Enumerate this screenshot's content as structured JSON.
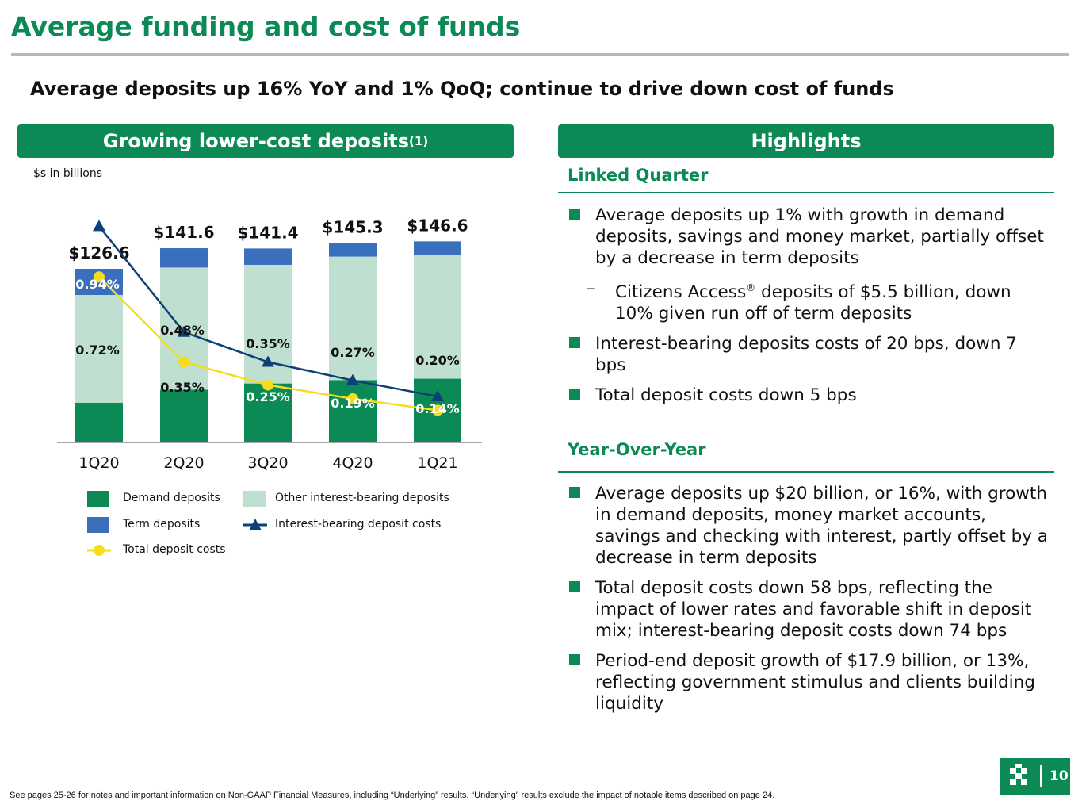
{
  "header": {
    "title": "Average funding and cost of funds",
    "subtitle": "Average deposits up 16% YoY and 1% QoQ; continue to drive down cost of funds"
  },
  "left_panel": {
    "banner": "Growing lower-cost deposits",
    "banner_sup": "(1)",
    "units": "$s in billions"
  },
  "chart_data": {
    "type": "bar",
    "stacked": true,
    "categories": [
      "1Q20",
      "2Q20",
      "3Q20",
      "4Q20",
      "1Q21"
    ],
    "totals": [
      126.6,
      141.6,
      141.4,
      145.3,
      146.6
    ],
    "total_labels": [
      "$126.6",
      "$141.6",
      "$141.4",
      "$145.3",
      "$146.6"
    ],
    "series": [
      {
        "name": "Demand deposits",
        "color": "#0b8a55",
        "values": [
          29.0,
          38.5,
          43.0,
          45.5,
          46.5
        ]
      },
      {
        "name": "Other interest-bearing deposits",
        "color": "#bfe0d0",
        "values": [
          78.5,
          89.0,
          86.5,
          90.0,
          90.5
        ]
      },
      {
        "name": "Term deposits",
        "color": "#3a6fbe",
        "values": [
          19.1,
          14.1,
          11.9,
          9.8,
          9.6
        ]
      }
    ],
    "rate_series": [
      {
        "name": "Interest-bearing deposit costs",
        "color": "#0d3f78",
        "marker": "triangle",
        "values": [
          0.94,
          0.48,
          0.35,
          0.27,
          0.2
        ],
        "labels": [
          "0.94%",
          "0.48%",
          "0.35%",
          "0.27%",
          "0.20%"
        ]
      },
      {
        "name": "Total deposit costs",
        "color": "#f5dc1e",
        "marker": "circle",
        "values": [
          0.72,
          0.35,
          0.25,
          0.19,
          0.14
        ],
        "labels": [
          "0.72%",
          "0.35%",
          "0.25%",
          "0.19%",
          "0.14%"
        ]
      }
    ],
    "ylim": [
      0,
      160
    ],
    "legend": [
      {
        "name": "Demand deposits",
        "kind": "box",
        "color": "#0b8a55"
      },
      {
        "name": "Other interest-bearing deposits",
        "kind": "box",
        "color": "#bfe0d0"
      },
      {
        "name": "Term deposits",
        "kind": "box",
        "color": "#3a6fbe"
      },
      {
        "name": "Interest-bearing deposit costs",
        "kind": "triangle-line",
        "color": "#0d3f78"
      },
      {
        "name": "Total deposit costs",
        "kind": "circle-line",
        "color": "#f5dc1e"
      }
    ],
    "legend_placement": "bottom",
    "grid": false
  },
  "right_panel": {
    "banner": "Highlights",
    "linked_quarter": {
      "heading": "Linked Quarter",
      "b1": "Average deposits up 1% with growth in demand deposits, savings and money market, partially offset by a decrease in term deposits",
      "sub1_a": "Citizens Access",
      "sub1_sup": "®",
      "sub1_b": " deposits of $5.5 billion, down 10% given run off of term deposits",
      "b2": "Interest-bearing deposits costs of 20 bps, down 7 bps",
      "b3": "Total deposit costs down 5 bps"
    },
    "year_over_year": {
      "heading": "Year-Over-Year",
      "b1": "Average deposits up $20 billion, or 16%, with growth in demand deposits, money market accounts, savings and checking with interest, partly offset by a decrease in term deposits",
      "b2": "Total deposit costs down 58 bps, reflecting the impact of lower rates and favorable shift in deposit mix; interest-bearing deposit costs down 74 bps",
      "b3": "Period-end deposit growth of $17.9 billion, or 13%, reflecting government stimulus and clients building liquidity"
    }
  },
  "footer": {
    "footnote": "See pages 25-26 for notes and important information on Non-GAAP Financial Measures, including “Underlying” results. “Underlying” results exclude the impact of notable items described on page 24.",
    "page_number": "10"
  },
  "colors": {
    "brand_green": "#0b8a55"
  },
  "icons": {
    "logo": "citizens-logo-icon"
  }
}
